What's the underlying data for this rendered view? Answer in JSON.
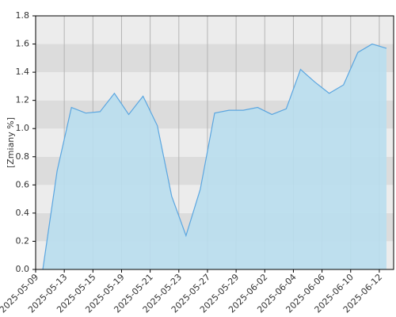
{
  "chart_data": {
    "type": "area",
    "y_label": "[Zmiany %]",
    "categories": [
      "2025-05-09",
      null,
      "2025-05-13",
      null,
      "2025-05-15",
      null,
      "2025-05-19",
      null,
      "2025-05-21",
      null,
      "2025-05-23",
      null,
      "2025-05-27",
      null,
      "2025-05-29",
      null,
      "2025-06-02",
      null,
      "2025-06-04",
      null,
      "2025-06-06",
      null,
      "2025-06-10",
      null,
      "2025-06-12"
    ],
    "values": [
      0.0,
      0.7,
      1.15,
      1.11,
      1.12,
      1.25,
      1.1,
      1.23,
      1.02,
      0.52,
      0.24,
      0.57,
      1.11,
      1.13,
      1.13,
      1.15,
      1.1,
      1.14,
      1.42,
      1.33,
      1.25,
      1.31,
      1.54,
      1.6,
      1.57
    ],
    "color": "#5ba6e0",
    "fill": "#b9deee",
    "ylim": [
      0,
      1.8
    ],
    "yticks": [
      {
        "value": 0,
        "label": "0.0"
      },
      0.2,
      0.4,
      0.6,
      0.8,
      {
        "value": 1,
        "label": "1.0"
      },
      1.2,
      1.4,
      1.6,
      1.8
    ],
    "grid": true
  }
}
